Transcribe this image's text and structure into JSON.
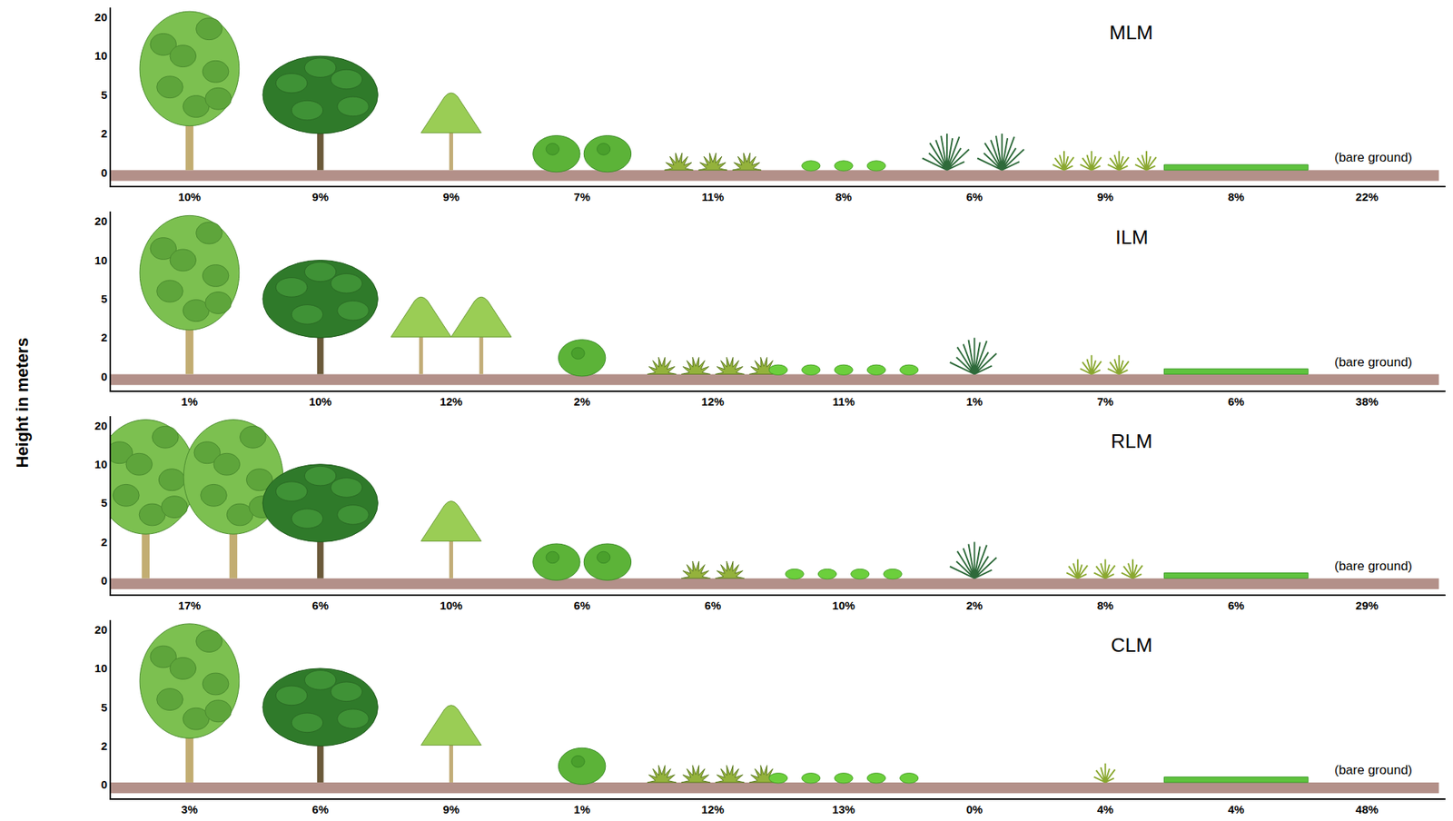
{
  "chart_data": {
    "type": "pictogram",
    "y_label": "Height in meters",
    "y_levels": [
      0,
      2,
      5,
      10,
      20
    ],
    "annotation": "(bare ground)",
    "data_labels": true,
    "panels": [
      {
        "title": "MLM",
        "values": [
          10,
          9,
          9,
          7,
          11,
          8,
          6,
          9,
          8,
          22
        ],
        "value_labels": [
          "10%",
          "9%",
          "9%",
          "7%",
          "11%",
          "8%",
          "6%",
          "9%",
          "8%",
          "22%"
        ],
        "icon_counts": [
          1,
          1,
          1,
          2,
          3,
          3,
          2,
          4,
          1,
          0
        ]
      },
      {
        "title": "ILM",
        "values": [
          1,
          10,
          12,
          2,
          12,
          11,
          1,
          7,
          6,
          38
        ],
        "value_labels": [
          "1%",
          "10%",
          "12%",
          "2%",
          "12%",
          "11%",
          "1%",
          "7%",
          "6%",
          "38%"
        ],
        "icon_counts": [
          1,
          1,
          2,
          1,
          4,
          5,
          1,
          2,
          1,
          0
        ]
      },
      {
        "title": "RLM",
        "values": [
          17,
          6,
          10,
          6,
          6,
          10,
          2,
          8,
          6,
          29
        ],
        "value_labels": [
          "17%",
          "6%",
          "10%",
          "6%",
          "6%",
          "10%",
          "2%",
          "8%",
          "6%",
          "29%"
        ],
        "icon_counts": [
          2,
          1,
          1,
          2,
          2,
          4,
          1,
          3,
          1,
          0
        ]
      },
      {
        "title": "CLM",
        "values": [
          3,
          6,
          9,
          1,
          12,
          13,
          0,
          4,
          4,
          48
        ],
        "value_labels": [
          "3%",
          "6%",
          "9%",
          "1%",
          "12%",
          "13%",
          "0%",
          "4%",
          "4%",
          "48%"
        ],
        "icon_counts": [
          1,
          1,
          1,
          1,
          4,
          5,
          0,
          1,
          1,
          0
        ]
      }
    ]
  }
}
